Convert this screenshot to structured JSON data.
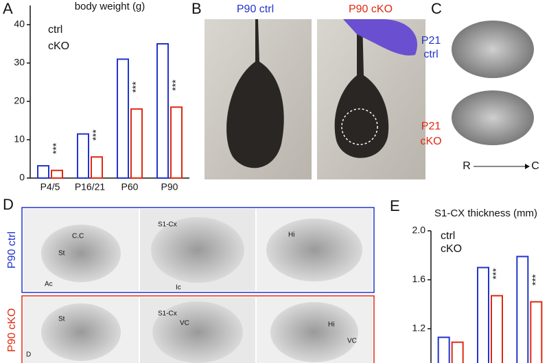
{
  "chart_data": [
    {
      "type": "bar",
      "title": "body weight (g)",
      "categories": [
        "P4/5",
        "P16/21",
        "P60",
        "P90"
      ],
      "series": [
        {
          "name": "ctrl",
          "color": "#2233cc",
          "values": [
            3.2,
            11.5,
            31,
            35
          ]
        },
        {
          "name": "cKO",
          "color": "#dd2a10",
          "values": [
            2,
            5.5,
            18,
            18.5
          ]
        }
      ],
      "annotations": [
        "***",
        "***",
        "***",
        "***"
      ],
      "ylim": [
        0,
        45
      ],
      "yticks": [
        0,
        10,
        20,
        30,
        40
      ]
    },
    {
      "type": "bar",
      "title": "S1-CX thickness (mm)",
      "categories": [
        null,
        null,
        null
      ],
      "series": [
        {
          "name": "ctrl",
          "color": "#2233cc",
          "values": [
            1.13,
            1.7,
            1.79
          ]
        },
        {
          "name": "cKO",
          "color": "#dd2a10",
          "values": [
            1.09,
            1.47,
            1.42
          ]
        }
      ],
      "annotations": [
        null,
        "***",
        "***"
      ],
      "ylim": [
        0.9,
        2.0
      ],
      "yticks": [
        {
          "value": 1.2,
          "label": "1.2"
        },
        {
          "value": 1.6,
          "label": "1.6"
        },
        {
          "value": 2.0,
          "label": "2.0"
        }
      ]
    }
  ],
  "panel_labels": [
    "A",
    "B",
    "C",
    "D",
    "E"
  ],
  "panel_b": {
    "labels": [
      "P90 ctrl",
      "P90 cKO"
    ]
  },
  "panel_c": {
    "ctrl": [
      "P21",
      "ctrl"
    ],
    "cko": [
      "P21",
      "cKO"
    ],
    "axis_start": "R",
    "axis_end": "C"
  },
  "panel_d": {
    "rows": [
      "P90 ctrl",
      "P90 cKO"
    ],
    "annotations": [
      "C.C",
      "St",
      "Ac",
      "S1-Cx",
      "Ic",
      "Hi",
      "St",
      "S1-Cx",
      "VC",
      "Hi",
      "VC",
      "D"
    ]
  }
}
